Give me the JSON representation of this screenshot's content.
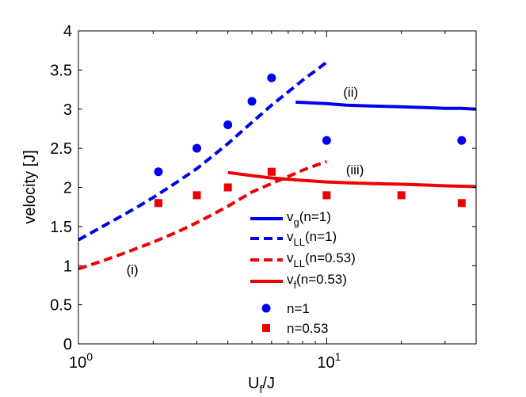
{
  "chart_data": {
    "type": "line",
    "xscale": "log",
    "xlim": [
      1,
      40
    ],
    "ylim": [
      0,
      4
    ],
    "grid": false,
    "legend_placement": "bottom-center",
    "xlabel_main": "U",
    "xlabel_sub": "f",
    "xlabel_tail": "/J",
    "ylabel": "velocity [J]",
    "yticks": [
      {
        "value": 0,
        "label": "0"
      },
      {
        "value": 0.5,
        "label": "0.5"
      },
      {
        "value": 1,
        "label": "1"
      },
      {
        "value": 1.5,
        "label": "1.5"
      },
      {
        "value": 2,
        "label": "2"
      },
      {
        "value": 2.5,
        "label": "2.5"
      },
      {
        "value": 3,
        "label": "3"
      },
      {
        "value": 3.5,
        "label": "3.5"
      },
      {
        "value": 4,
        "label": "4"
      }
    ],
    "xticks": [
      {
        "value": 1,
        "base": "10",
        "exp": "0"
      },
      {
        "value": 10,
        "base": "10",
        "exp": "1"
      }
    ],
    "series": [
      {
        "key": "vg",
        "legend_main": "v",
        "legend_sub": "g",
        "legend_tail": "(n=1)",
        "color": "#0000ee",
        "style": "solid",
        "x": [
          7.5,
          10,
          12,
          15,
          20,
          25,
          30,
          35,
          40
        ],
        "y": [
          3.09,
          3.07,
          3.05,
          3.04,
          3.03,
          3.02,
          3.01,
          3.01,
          3.0
        ]
      },
      {
        "key": "vLL1",
        "legend_main": "v",
        "legend_sub": "LL",
        "legend_tail": "(n=1)",
        "color": "#0000ee",
        "style": "dashed",
        "x": [
          1,
          1.25,
          1.5,
          1.75,
          2,
          2.5,
          3,
          3.5,
          4,
          5,
          6,
          7,
          8,
          9,
          10
        ],
        "y": [
          1.33,
          1.5,
          1.64,
          1.76,
          1.87,
          2.07,
          2.24,
          2.41,
          2.56,
          2.83,
          3.05,
          3.22,
          3.37,
          3.49,
          3.6
        ]
      },
      {
        "key": "vLL053",
        "legend_main": "v",
        "legend_sub": "LL",
        "legend_tail": "(n=0.53)",
        "color": "#ee0000",
        "style": "dashed",
        "x": [
          1,
          1.25,
          1.5,
          1.75,
          2,
          2.5,
          3,
          3.5,
          4,
          5,
          6,
          7,
          8,
          9,
          10
        ],
        "y": [
          0.96,
          1.06,
          1.15,
          1.23,
          1.3,
          1.43,
          1.55,
          1.66,
          1.76,
          1.94,
          2.05,
          2.14,
          2.22,
          2.28,
          2.33
        ]
      },
      {
        "key": "vf",
        "legend_main": "v",
        "legend_sub": "f",
        "legend_tail": "(n=0.53)",
        "color": "#ee0000",
        "style": "solid",
        "x": [
          4,
          5,
          6,
          8,
          10,
          12,
          15,
          20,
          25,
          30,
          35,
          40
        ],
        "y": [
          2.19,
          2.15,
          2.12,
          2.09,
          2.07,
          2.06,
          2.05,
          2.04,
          2.03,
          2.02,
          2.015,
          2.01
        ]
      }
    ],
    "points": [
      {
        "key": "n1",
        "legend_label": "n=1",
        "color": "#0000ee",
        "marker": "circle",
        "x": [
          2.1,
          3,
          4,
          5,
          6,
          10,
          35
        ],
        "y": [
          2.2,
          2.5,
          2.8,
          3.1,
          3.4,
          2.6,
          2.6
        ]
      },
      {
        "key": "n053",
        "legend_label": "n=0.53",
        "color": "#ee0000",
        "marker": "square",
        "x": [
          2.1,
          3,
          4,
          6,
          10,
          20,
          35
        ],
        "y": [
          1.8,
          1.9,
          2.0,
          2.2,
          1.9,
          1.9,
          1.8
        ]
      }
    ],
    "annotations": [
      {
        "text": "(i)",
        "x": 1.65,
        "y": 0.95
      },
      {
        "text": "(ii)",
        "x": 12.5,
        "y": 3.22
      },
      {
        "text": "(iii)",
        "x": 13,
        "y": 2.23
      }
    ]
  }
}
